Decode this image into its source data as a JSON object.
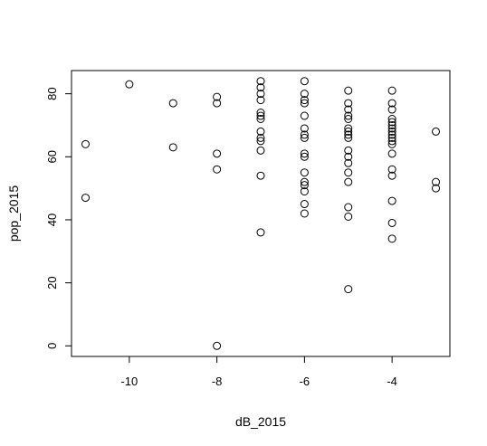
{
  "chart_data": {
    "type": "scatter",
    "xlabel": "dB_2015",
    "ylabel": "pop_2015",
    "xlim": [
      -11.32,
      -2.68
    ],
    "ylim": [
      -3.36,
      87.36
    ],
    "xticks": [
      -10,
      -8,
      -6,
      -4
    ],
    "yticks": [
      0,
      20,
      40,
      60,
      80
    ],
    "xtick_labels": [
      "-10",
      "-8",
      "-6",
      "-4"
    ],
    "ytick_labels": [
      "0",
      "20",
      "40",
      "60",
      "80"
    ],
    "grid": false,
    "point_style": "open-circle",
    "colors": {
      "points": "#000000",
      "axes": "#000000"
    },
    "points": [
      {
        "x": -11,
        "y": 64
      },
      {
        "x": -11,
        "y": 47
      },
      {
        "x": -10,
        "y": 83
      },
      {
        "x": -9,
        "y": 77
      },
      {
        "x": -9,
        "y": 63
      },
      {
        "x": -8,
        "y": 79
      },
      {
        "x": -8,
        "y": 77
      },
      {
        "x": -8,
        "y": 61
      },
      {
        "x": -8,
        "y": 56
      },
      {
        "x": -8,
        "y": 0
      },
      {
        "x": -7,
        "y": 84
      },
      {
        "x": -7,
        "y": 82
      },
      {
        "x": -7,
        "y": 80
      },
      {
        "x": -7,
        "y": 78
      },
      {
        "x": -7,
        "y": 74
      },
      {
        "x": -7,
        "y": 73
      },
      {
        "x": -7,
        "y": 72
      },
      {
        "x": -7,
        "y": 68
      },
      {
        "x": -7,
        "y": 66
      },
      {
        "x": -7,
        "y": 65
      },
      {
        "x": -7,
        "y": 62
      },
      {
        "x": -7,
        "y": 54
      },
      {
        "x": -7,
        "y": 36
      },
      {
        "x": -6,
        "y": 84
      },
      {
        "x": -6,
        "y": 80
      },
      {
        "x": -6,
        "y": 78
      },
      {
        "x": -6,
        "y": 77
      },
      {
        "x": -6,
        "y": 73
      },
      {
        "x": -6,
        "y": 69
      },
      {
        "x": -6,
        "y": 67
      },
      {
        "x": -6,
        "y": 66
      },
      {
        "x": -6,
        "y": 61
      },
      {
        "x": -6,
        "y": 60
      },
      {
        "x": -6,
        "y": 55
      },
      {
        "x": -6,
        "y": 52
      },
      {
        "x": -6,
        "y": 51
      },
      {
        "x": -6,
        "y": 49
      },
      {
        "x": -6,
        "y": 45
      },
      {
        "x": -6,
        "y": 42
      },
      {
        "x": -5,
        "y": 81
      },
      {
        "x": -5,
        "y": 77
      },
      {
        "x": -5,
        "y": 75
      },
      {
        "x": -5,
        "y": 73
      },
      {
        "x": -5,
        "y": 72
      },
      {
        "x": -5,
        "y": 69
      },
      {
        "x": -5,
        "y": 68
      },
      {
        "x": -5,
        "y": 67
      },
      {
        "x": -5,
        "y": 66
      },
      {
        "x": -5,
        "y": 62
      },
      {
        "x": -5,
        "y": 60
      },
      {
        "x": -5,
        "y": 58
      },
      {
        "x": -5,
        "y": 55
      },
      {
        "x": -5,
        "y": 52
      },
      {
        "x": -5,
        "y": 44
      },
      {
        "x": -5,
        "y": 41
      },
      {
        "x": -5,
        "y": 18
      },
      {
        "x": -4,
        "y": 81
      },
      {
        "x": -4,
        "y": 77
      },
      {
        "x": -4,
        "y": 75
      },
      {
        "x": -4,
        "y": 72
      },
      {
        "x": -4,
        "y": 71
      },
      {
        "x": -4,
        "y": 70
      },
      {
        "x": -4,
        "y": 69
      },
      {
        "x": -4,
        "y": 68
      },
      {
        "x": -4,
        "y": 67
      },
      {
        "x": -4,
        "y": 66
      },
      {
        "x": -4,
        "y": 65
      },
      {
        "x": -4,
        "y": 64
      },
      {
        "x": -4,
        "y": 61
      },
      {
        "x": -4,
        "y": 56
      },
      {
        "x": -4,
        "y": 54
      },
      {
        "x": -4,
        "y": 46
      },
      {
        "x": -4,
        "y": 39
      },
      {
        "x": -4,
        "y": 34
      },
      {
        "x": -3,
        "y": 68
      },
      {
        "x": -3,
        "y": 52
      },
      {
        "x": -3,
        "y": 50
      }
    ]
  }
}
